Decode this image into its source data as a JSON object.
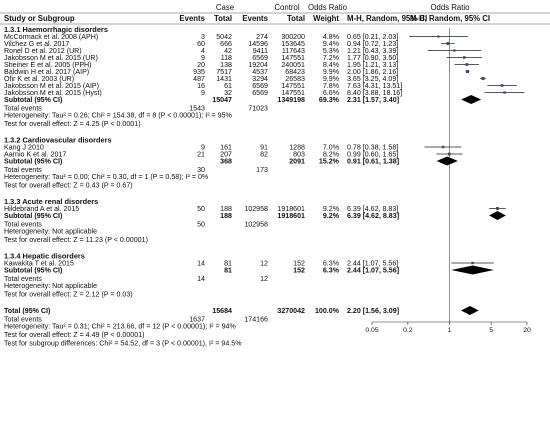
{
  "header": {
    "study_col": "Study or Subgroup",
    "case_label": "Case",
    "control_label": "Control",
    "events": "Events",
    "total": "Total",
    "weight": "Weight",
    "or_label": "Odds Ratio",
    "method": "M-H, Random, 95% CI"
  },
  "colors": {
    "square": "#2e4a8b",
    "diamond": "#000000",
    "header_line": "#555555"
  },
  "subgroups": [
    {
      "title": "1.3.1 Haemorrhagic disorders",
      "studies": [
        {
          "name": "McCormack et al. 2008 (APH)",
          "ce": "3",
          "ct": "5042",
          "coe": "274",
          "cot": "300200",
          "w": "4.8%",
          "ci": "0.65 [0.21, 2.03]",
          "or": 0.65,
          "lo": 0.21,
          "hi": 2.03,
          "wt": 4.8
        },
        {
          "name": "Vilchez G et al. 2017",
          "ce": "60",
          "ct": "666",
          "coe": "14596",
          "cot": "153645",
          "w": "9.4%",
          "ci": "0.94 [0.72, 1.23]",
          "or": 0.94,
          "lo": 0.72,
          "hi": 1.23,
          "wt": 9.4
        },
        {
          "name": "Ronel D et al. 2012 (UR)",
          "ce": "4",
          "ct": "42",
          "coe": "9411",
          "cot": "117643",
          "w": "5.3%",
          "ci": "1.21 [0.43, 3.39]",
          "or": 1.21,
          "lo": 0.43,
          "hi": 3.39,
          "wt": 5.3
        },
        {
          "name": "Jakobsson M et al. 2015 (UR)",
          "ce": "9",
          "ct": "118",
          "coe": "6569",
          "cot": "147551",
          "w": "7.2%",
          "ci": "1.77 [0.90, 3.50]",
          "or": 1.77,
          "lo": 0.9,
          "hi": 3.5,
          "wt": 7.2
        },
        {
          "name": "Sheiner E et al. 2005 (PPH)",
          "ce": "20",
          "ct": "138",
          "coe": "19204",
          "cot": "240051",
          "w": "8.4%",
          "ci": "1.95 [1.21, 3.13]",
          "or": 1.95,
          "lo": 1.21,
          "hi": 3.13,
          "wt": 8.4
        },
        {
          "name": "Baldwin H et al. 2017 (AIP)",
          "ce": "935",
          "ct": "7517",
          "coe": "4537",
          "cot": "68423",
          "w": "9.9%",
          "ci": "2.00 [1.86, 2.16]",
          "or": 2.0,
          "lo": 1.86,
          "hi": 2.16,
          "wt": 9.9
        },
        {
          "name": "Ofir K et al. 2003 (UR)",
          "ce": "487",
          "ct": "1431",
          "coe": "3294",
          "cot": "26583",
          "w": "9.9%",
          "ci": "3.65 [3.25, 4.09]",
          "or": 3.65,
          "lo": 3.25,
          "hi": 4.09,
          "wt": 9.9
        },
        {
          "name": "Jakobsson M et al. 2015 (AIP)",
          "ce": "16",
          "ct": "61",
          "coe": "6569",
          "cot": "147551",
          "w": "7.8%",
          "ci": "7.63 [4.31, 13.51]",
          "or": 7.63,
          "lo": 4.31,
          "hi": 13.51,
          "wt": 7.8
        },
        {
          "name": "Jakobsson M et al. 2015 (Hyst)",
          "ce": "9",
          "ct": "32",
          "coe": "6569",
          "cot": "147551",
          "w": "6.6%",
          "ci": "8.40 [3.88, 18.16]",
          "or": 8.4,
          "lo": 3.88,
          "hi": 18.16,
          "wt": 6.6
        }
      ],
      "subtotal": {
        "label": "Subtotal (95% CI)",
        "ct": "15047",
        "cot": "1349198",
        "w": "69.3%",
        "ci": "2.31 [1.57, 3.40]",
        "or": 2.31,
        "lo": 1.57,
        "hi": 3.4
      },
      "total_events": {
        "label": "Total events",
        "ce": "1543",
        "coe": "71023"
      },
      "het": "Heterogeneity: Tau² = 0.26; Chi² = 154.38, df = 8 (P < 0.00001); I² = 95%",
      "test": "Test for overall effect: Z = 4.25 (P < 0.0001)"
    },
    {
      "title": "1.3.2 Cardiovascular disorders",
      "studies": [
        {
          "name": "Kang J 2010",
          "ce": "9",
          "ct": "161",
          "coe": "91",
          "cot": "1288",
          "w": "7.0%",
          "ci": "0.78 [0.38, 1.58]",
          "or": 0.78,
          "lo": 0.38,
          "hi": 1.58,
          "wt": 7.0
        },
        {
          "name": "Aarnio K et al. 2017",
          "ce": "21",
          "ct": "207",
          "coe": "82",
          "cot": "803",
          "w": "8.2%",
          "ci": "0.99 [0.60, 1.65]",
          "or": 0.99,
          "lo": 0.6,
          "hi": 1.65,
          "wt": 8.2
        }
      ],
      "subtotal": {
        "label": "Subtotal (95% CI)",
        "ct": "368",
        "cot": "2091",
        "w": "15.2%",
        "ci": "0.91 [0.61, 1.38]",
        "or": 0.91,
        "lo": 0.61,
        "hi": 1.38
      },
      "total_events": {
        "label": "Total events",
        "ce": "30",
        "coe": "173"
      },
      "het": "Heterogeneity: Tau² = 0.00; Chi² = 0.30, df = 1 (P = 0.58); I² = 0%",
      "test": "Test for overall effect: Z = 0.43 (P = 0.67)"
    },
    {
      "title": "1.3.3 Acute renal disorders",
      "studies": [
        {
          "name": "Hildebrand A et al. 2015",
          "ce": "50",
          "ct": "188",
          "coe": "102958",
          "cot": "1918601",
          "w": "9.2%",
          "ci": "6.39 [4.62, 8.83]",
          "or": 6.39,
          "lo": 4.62,
          "hi": 8.83,
          "wt": 9.2
        }
      ],
      "subtotal": {
        "label": "Subtotal (95% CI)",
        "ct": "188",
        "cot": "1918601",
        "w": "9.2%",
        "ci": "6.39 [4.62, 8.83]",
        "or": 6.39,
        "lo": 4.62,
        "hi": 8.83
      },
      "total_events": {
        "label": "Total events",
        "ce": "50",
        "coe": "102958"
      },
      "het": "Heterogeneity: Not applicable",
      "test": "Test for overall effect: Z = 11.23 (P < 0.00001)"
    },
    {
      "title": "1.3.4 Hepatic disorders",
      "studies": [
        {
          "name": "Kawakita T et al. 2015",
          "ce": "14",
          "ct": "81",
          "coe": "12",
          "cot": "152",
          "w": "6.3%",
          "ci": "2.44 [1.07, 5.56]",
          "or": 2.44,
          "lo": 1.07,
          "hi": 5.56,
          "wt": 6.3
        }
      ],
      "subtotal": {
        "label": "Subtotal (95% CI)",
        "ct": "81",
        "cot": "152",
        "w": "6.3%",
        "ci": "2.44 [1.07, 5.56]",
        "or": 2.44,
        "lo": 1.07,
        "hi": 5.56
      },
      "total_events": {
        "label": "Total events",
        "ce": "14",
        "coe": "12"
      },
      "het": "Heterogeneity: Not applicable",
      "test": "Test for overall effect: Z = 2.12 (P = 0.03)"
    }
  ],
  "overall": {
    "label": "Total (95% CI)",
    "ct": "15684",
    "cot": "3270042",
    "w": "100.0%",
    "ci": "2.20 [1.56, 3.09]",
    "or": 2.2,
    "lo": 1.56,
    "hi": 3.09,
    "total_events": {
      "label": "Total events",
      "ce": "1637",
      "coe": "174166"
    },
    "het": "Heterogeneity: Tau² = 0.31; Chi² = 213.66, df = 12 (P < 0.00001); I² = 94%",
    "test": "Test for overall effect: Z = 4.49 (P < 0.00001)",
    "subgroup": "Test for subgroup differences: Chi² = 54.52, df = 3 (P < 0.00001), I² = 94.5%"
  },
  "chart_data": {
    "type": "forest",
    "scale": "log",
    "xlim": [
      0.05,
      20
    ],
    "ticks": [
      0.05,
      0.2,
      1,
      5,
      20
    ],
    "tick_labels": [
      "0.05",
      "0.2",
      "1",
      "5",
      "20"
    ],
    "reference_line": 1
  }
}
